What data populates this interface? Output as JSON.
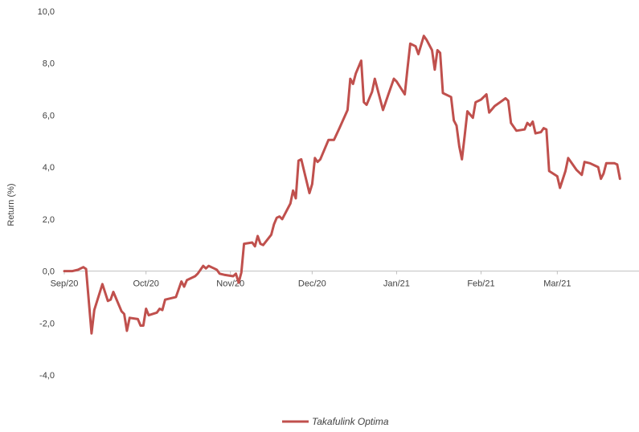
{
  "chart_data": {
    "type": "line",
    "title": "",
    "ylabel": "Return (%)",
    "xlabel": "",
    "ylim": [
      -4,
      10
    ],
    "y_ticks": [
      "10,0",
      "8,0",
      "6,0",
      "4,0",
      "2,0",
      "0,0",
      "-2,0",
      "-4,0"
    ],
    "y_tick_values": [
      10,
      8,
      6,
      4,
      2,
      0,
      -2,
      -4
    ],
    "x_tick_labels": [
      "Sep/20",
      "Oct/20",
      "Nov/20",
      "Dec/20",
      "Jan/21",
      "Feb/21",
      "Mar/21"
    ],
    "x_tick_dates": [
      "2020-09-01",
      "2020-10-01",
      "2020-11-01",
      "2020-12-01",
      "2021-01-01",
      "2021-02-01",
      "2021-03-01"
    ],
    "xlim": [
      "2020-09-01",
      "2021-03-31"
    ],
    "grid": false,
    "legend_position": "bottom",
    "series": [
      {
        "name": "Takafulink Optima",
        "color": "#c0504d",
        "points": [
          [
            "2020-09-01",
            0.0
          ],
          [
            "2020-09-04",
            0.0
          ],
          [
            "2020-09-06",
            0.05
          ],
          [
            "2020-09-08",
            0.15
          ],
          [
            "2020-09-09",
            0.08
          ],
          [
            "2020-09-11",
            -2.4
          ],
          [
            "2020-09-12",
            -1.5
          ],
          [
            "2020-09-15",
            -0.5
          ],
          [
            "2020-09-17",
            -1.15
          ],
          [
            "2020-09-18",
            -1.1
          ],
          [
            "2020-09-19",
            -0.8
          ],
          [
            "2020-09-22",
            -1.55
          ],
          [
            "2020-09-23",
            -1.65
          ],
          [
            "2020-09-24",
            -2.3
          ],
          [
            "2020-09-25",
            -1.8
          ],
          [
            "2020-09-28",
            -1.85
          ],
          [
            "2020-09-29",
            -2.1
          ],
          [
            "2020-09-30",
            -2.1
          ],
          [
            "2020-10-01",
            -1.45
          ],
          [
            "2020-10-02",
            -1.7
          ],
          [
            "2020-10-05",
            -1.6
          ],
          [
            "2020-10-06",
            -1.45
          ],
          [
            "2020-10-07",
            -1.5
          ],
          [
            "2020-10-08",
            -1.1
          ],
          [
            "2020-10-12",
            -1.0
          ],
          [
            "2020-10-13",
            -0.7
          ],
          [
            "2020-10-14",
            -0.4
          ],
          [
            "2020-10-15",
            -0.6
          ],
          [
            "2020-10-16",
            -0.35
          ],
          [
            "2020-10-19",
            -0.2
          ],
          [
            "2020-10-20",
            -0.1
          ],
          [
            "2020-10-22",
            0.2
          ],
          [
            "2020-10-23",
            0.1
          ],
          [
            "2020-10-24",
            0.2
          ],
          [
            "2020-10-26",
            0.1
          ],
          [
            "2020-10-27",
            0.05
          ],
          [
            "2020-10-28",
            -0.1
          ],
          [
            "2020-10-30",
            -0.15
          ],
          [
            "2020-11-02",
            -0.2
          ],
          [
            "2020-11-03",
            -0.1
          ],
          [
            "2020-11-04",
            -0.45
          ],
          [
            "2020-11-05",
            -0.05
          ],
          [
            "2020-11-06",
            1.05
          ],
          [
            "2020-11-09",
            1.1
          ],
          [
            "2020-11-10",
            0.95
          ],
          [
            "2020-11-11",
            1.35
          ],
          [
            "2020-11-12",
            1.05
          ],
          [
            "2020-11-13",
            1.0
          ],
          [
            "2020-11-16",
            1.4
          ],
          [
            "2020-11-17",
            1.8
          ],
          [
            "2020-11-18",
            2.05
          ],
          [
            "2020-11-19",
            2.1
          ],
          [
            "2020-11-20",
            2.0
          ],
          [
            "2020-11-23",
            2.6
          ],
          [
            "2020-11-24",
            3.1
          ],
          [
            "2020-11-25",
            2.8
          ],
          [
            "2020-11-26",
            4.25
          ],
          [
            "2020-11-27",
            4.3
          ],
          [
            "2020-11-30",
            3.0
          ],
          [
            "2020-12-01",
            3.35
          ],
          [
            "2020-12-02",
            4.35
          ],
          [
            "2020-12-03",
            4.2
          ],
          [
            "2020-12-04",
            4.3
          ],
          [
            "2020-12-07",
            5.05
          ],
          [
            "2020-12-09",
            5.05
          ],
          [
            "2020-12-11",
            5.5
          ],
          [
            "2020-12-14",
            6.2
          ],
          [
            "2020-12-15",
            7.4
          ],
          [
            "2020-12-16",
            7.2
          ],
          [
            "2020-12-17",
            7.6
          ],
          [
            "2020-12-19",
            8.1
          ],
          [
            "2020-12-20",
            6.5
          ],
          [
            "2020-12-21",
            6.4
          ],
          [
            "2020-12-23",
            6.9
          ],
          [
            "2020-12-24",
            7.4
          ],
          [
            "2020-12-25",
            7.0
          ],
          [
            "2020-12-27",
            6.2
          ],
          [
            "2020-12-29",
            6.8
          ],
          [
            "2020-12-31",
            7.4
          ],
          [
            "2021-01-01",
            7.3
          ],
          [
            "2021-01-04",
            6.8
          ],
          [
            "2021-01-05",
            7.8
          ],
          [
            "2021-01-06",
            8.75
          ],
          [
            "2021-01-08",
            8.65
          ],
          [
            "2021-01-09",
            8.35
          ],
          [
            "2021-01-11",
            9.05
          ],
          [
            "2021-01-12",
            8.9
          ],
          [
            "2021-01-14",
            8.5
          ],
          [
            "2021-01-15",
            7.75
          ],
          [
            "2021-01-16",
            8.5
          ],
          [
            "2021-01-17",
            8.4
          ],
          [
            "2021-01-18",
            6.85
          ],
          [
            "2021-01-21",
            6.7
          ],
          [
            "2021-01-22",
            5.8
          ],
          [
            "2021-01-23",
            5.6
          ],
          [
            "2021-01-24",
            4.8
          ],
          [
            "2021-01-25",
            4.3
          ],
          [
            "2021-01-26",
            5.2
          ],
          [
            "2021-01-27",
            6.15
          ],
          [
            "2021-01-29",
            5.9
          ],
          [
            "2021-01-30",
            6.5
          ],
          [
            "2021-02-01",
            6.6
          ],
          [
            "2021-02-03",
            6.8
          ],
          [
            "2021-02-04",
            6.1
          ],
          [
            "2021-02-06",
            6.35
          ],
          [
            "2021-02-08",
            6.5
          ],
          [
            "2021-02-10",
            6.65
          ],
          [
            "2021-02-11",
            6.55
          ],
          [
            "2021-02-12",
            5.7
          ],
          [
            "2021-02-14",
            5.4
          ],
          [
            "2021-02-17",
            5.45
          ],
          [
            "2021-02-18",
            5.7
          ],
          [
            "2021-02-19",
            5.6
          ],
          [
            "2021-02-20",
            5.75
          ],
          [
            "2021-02-21",
            5.3
          ],
          [
            "2021-02-23",
            5.35
          ],
          [
            "2021-02-24",
            5.5
          ],
          [
            "2021-02-25",
            5.45
          ],
          [
            "2021-02-26",
            3.85
          ],
          [
            "2021-03-01",
            3.65
          ],
          [
            "2021-03-02",
            3.2
          ],
          [
            "2021-03-04",
            3.85
          ],
          [
            "2021-03-05",
            4.35
          ],
          [
            "2021-03-08",
            3.9
          ],
          [
            "2021-03-10",
            3.7
          ],
          [
            "2021-03-11",
            4.2
          ],
          [
            "2021-03-13",
            4.15
          ],
          [
            "2021-03-16",
            4.0
          ],
          [
            "2021-03-17",
            3.55
          ],
          [
            "2021-03-18",
            3.75
          ],
          [
            "2021-03-19",
            4.15
          ],
          [
            "2021-03-22",
            4.15
          ],
          [
            "2021-03-23",
            4.1
          ],
          [
            "2021-03-24",
            3.55
          ]
        ]
      }
    ]
  }
}
